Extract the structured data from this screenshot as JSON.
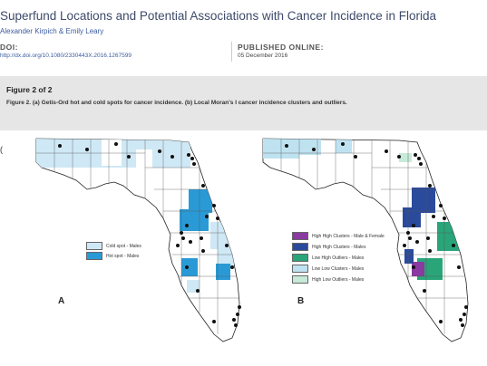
{
  "article": {
    "title": "Superfund Locations and Potential Associations with Cancer Incidence in Florida",
    "authors": "Alexander Kirpich & Emily Leary",
    "doi_label": "DOI:",
    "doi_value": "http://dx.doi.org/10.1080/2330443X.2016.1267599",
    "published_label": "PUBLISHED ONLINE:",
    "published_value": "05 December 2016"
  },
  "figure": {
    "header": "Figure 2 of 2",
    "caption": "Figure 2. (a) Getis-Ord hot and cold spots for cancer incidence. (b) Local Moran's I cancer incidence clusters and outliers.",
    "side_mark": "(",
    "panel_a": {
      "label": "A",
      "legend": [
        {
          "label": "Cold spot - Males",
          "color": "#cfe8f5"
        },
        {
          "label": "Hot spot - Males",
          "color": "#2a9ad6"
        }
      ]
    },
    "panel_b": {
      "label": "B",
      "legend": [
        {
          "label": "High High Clusters - Male & Female",
          "color": "#8a3aa0"
        },
        {
          "label": "High High Clusters - Males",
          "color": "#2a4a9c"
        },
        {
          "label": "Low High Outliers - Males",
          "color": "#2aa57a"
        },
        {
          "label": "Low Low Clusters - Males",
          "color": "#bfe2f0"
        },
        {
          "label": "High Low Outliers - Males",
          "color": "#c7ead9"
        }
      ]
    }
  }
}
